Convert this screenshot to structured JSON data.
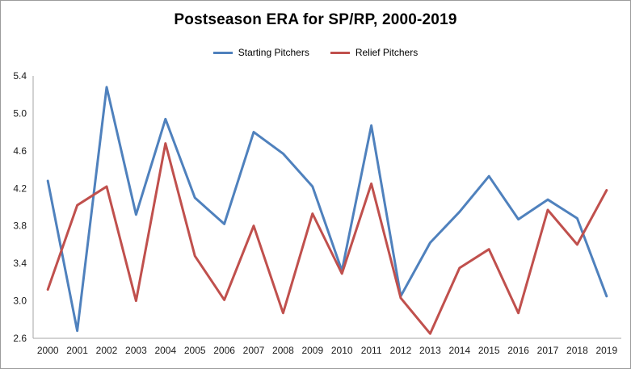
{
  "chart_data": {
    "type": "line",
    "title": "Postseason ERA for SP/RP, 2000-2019",
    "categories": [
      "2000",
      "2001",
      "2002",
      "2003",
      "2004",
      "2005",
      "2006",
      "2007",
      "2008",
      "2009",
      "2010",
      "2011",
      "2012",
      "2013",
      "2014",
      "2015",
      "2016",
      "2017",
      "2018",
      "2019"
    ],
    "series": [
      {
        "name": "Starting Pitchers",
        "color": "#4F81BD",
        "values": [
          4.28,
          2.68,
          5.28,
          3.92,
          4.94,
          4.1,
          3.82,
          4.8,
          4.57,
          4.22,
          3.32,
          4.87,
          3.05,
          3.62,
          3.95,
          4.33,
          3.87,
          4.08,
          3.88,
          3.05
        ]
      },
      {
        "name": "Relief Pitchers",
        "color": "#C0504D",
        "values": [
          3.12,
          4.02,
          4.22,
          3.0,
          4.68,
          3.48,
          3.01,
          3.8,
          2.87,
          3.93,
          3.29,
          4.25,
          3.03,
          2.65,
          3.35,
          3.55,
          2.87,
          3.97,
          3.6,
          4.18
        ]
      }
    ],
    "xlabel": "",
    "ylabel": "",
    "ylim": [
      2.6,
      5.4
    ],
    "yticks": [
      "2.6",
      "3.0",
      "3.4",
      "3.8",
      "4.2",
      "4.6",
      "5.0",
      "5.4"
    ],
    "grid": false,
    "legend_position": "top-center",
    "axis_color": "#a6a6a6",
    "line_width": 3
  }
}
